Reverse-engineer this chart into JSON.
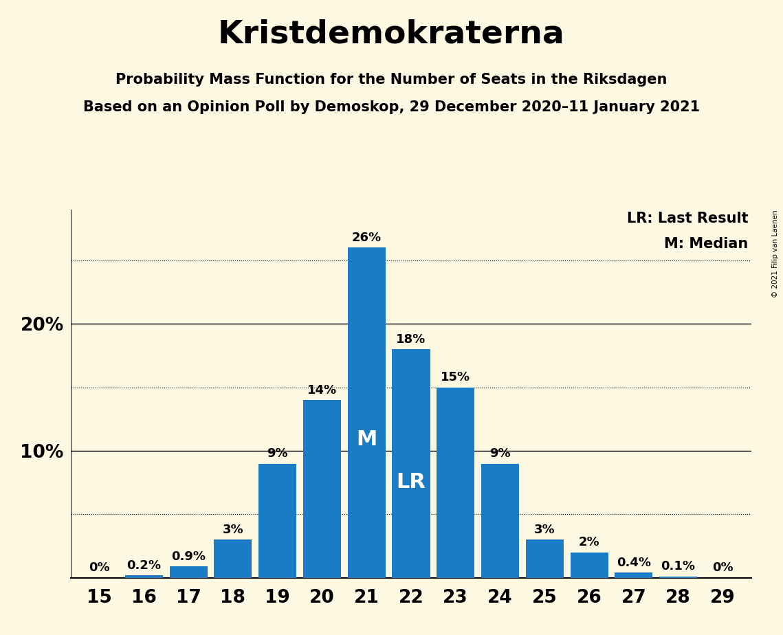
{
  "title": "Kristdemokraterna",
  "subtitle1": "Probability Mass Function for the Number of Seats in the Riksdagen",
  "subtitle2": "Based on an Opinion Poll by Demoskop, 29 December 2020–11 January 2021",
  "copyright": "© 2021 Filip van Laenen",
  "categories": [
    15,
    16,
    17,
    18,
    19,
    20,
    21,
    22,
    23,
    24,
    25,
    26,
    27,
    28,
    29
  ],
  "values": [
    0.0,
    0.2,
    0.9,
    3.0,
    9.0,
    14.0,
    26.0,
    18.0,
    15.0,
    9.0,
    3.0,
    2.0,
    0.4,
    0.1,
    0.0
  ],
  "bar_labels": [
    "0%",
    "0.2%",
    "0.9%",
    "3%",
    "9%",
    "14%",
    "26%",
    "18%",
    "15%",
    "9%",
    "3%",
    "2%",
    "0.4%",
    "0.1%",
    "0%"
  ],
  "bar_color": "#1b7cc4",
  "background_color": "#fdf8e1",
  "median_seat": 21,
  "last_result_seat": 22,
  "lr_label": "LR",
  "median_label": "M",
  "legend_lr": "LR: Last Result",
  "legend_m": "M: Median",
  "dotted_lines": [
    5.0,
    15.0,
    25.0
  ],
  "solid_lines": [
    10.0,
    20.0
  ],
  "ylim": [
    0,
    29
  ],
  "bar_width": 0.85,
  "title_fontsize": 34,
  "subtitle_fontsize": 15,
  "axis_tick_fontsize": 19,
  "bar_label_fontsize": 13,
  "legend_fontsize": 15,
  "inside_label_fontsize": 22
}
